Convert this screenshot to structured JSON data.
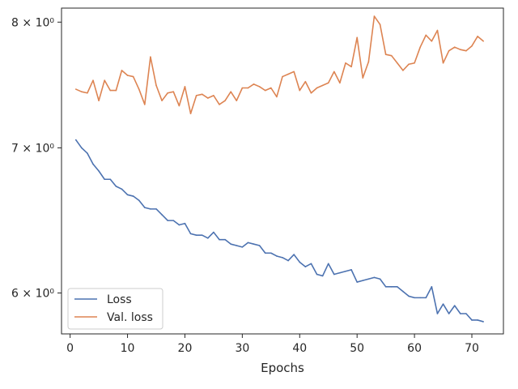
{
  "chart_data": {
    "type": "line",
    "title": "",
    "xlabel": "Epochs",
    "ylabel": "",
    "yscale": "log",
    "xlim": [
      -1.5,
      75.5
    ],
    "ylim": [
      5.745,
      8.12
    ],
    "x_ticks": [
      0,
      10,
      20,
      30,
      40,
      50,
      60,
      70
    ],
    "y_ticks": [
      {
        "value": 6,
        "label": "6 × 10⁰"
      },
      {
        "value": 7,
        "label": "7 × 10⁰"
      },
      {
        "value": 8,
        "label": "8 × 10⁰"
      }
    ],
    "grid": false,
    "legend_position": "lower-left",
    "series": [
      {
        "name": "Loss",
        "color": "#4c72b0",
        "x": [
          1,
          2,
          3,
          4,
          5,
          6,
          7,
          8,
          9,
          10,
          11,
          12,
          13,
          14,
          15,
          16,
          17,
          18,
          19,
          20,
          21,
          22,
          23,
          24,
          25,
          26,
          27,
          28,
          29,
          30,
          31,
          32,
          33,
          34,
          35,
          36,
          37,
          38,
          39,
          40,
          41,
          42,
          43,
          44,
          45,
          46,
          47,
          48,
          49,
          50,
          51,
          52,
          53,
          54,
          55,
          56,
          57,
          58,
          59,
          60,
          61,
          62,
          63,
          64,
          65,
          66,
          67,
          68,
          69,
          70,
          71,
          72
        ],
        "values": [
          7.06,
          7.0,
          6.96,
          6.88,
          6.83,
          6.77,
          6.77,
          6.72,
          6.7,
          6.66,
          6.65,
          6.62,
          6.57,
          6.56,
          6.56,
          6.52,
          6.48,
          6.48,
          6.45,
          6.46,
          6.39,
          6.38,
          6.38,
          6.36,
          6.4,
          6.35,
          6.35,
          6.32,
          6.31,
          6.3,
          6.33,
          6.32,
          6.31,
          6.26,
          6.26,
          6.24,
          6.23,
          6.21,
          6.25,
          6.2,
          6.17,
          6.19,
          6.12,
          6.11,
          6.19,
          6.12,
          6.13,
          6.14,
          6.15,
          6.07,
          6.08,
          6.09,
          6.1,
          6.09,
          6.04,
          6.04,
          6.04,
          6.01,
          5.98,
          5.97,
          5.97,
          5.97,
          6.04,
          5.87,
          5.93,
          5.87,
          5.92,
          5.87,
          5.87,
          5.83,
          5.83,
          5.82
        ]
      },
      {
        "name": "Val. loss",
        "color": "#dd8452",
        "x": [
          1,
          2,
          3,
          4,
          5,
          6,
          7,
          8,
          9,
          10,
          11,
          12,
          13,
          14,
          15,
          16,
          17,
          18,
          19,
          20,
          21,
          22,
          23,
          24,
          25,
          26,
          27,
          28,
          29,
          30,
          31,
          32,
          33,
          34,
          35,
          36,
          37,
          38,
          39,
          40,
          41,
          42,
          43,
          44,
          45,
          46,
          47,
          48,
          49,
          50,
          51,
          52,
          53,
          54,
          55,
          56,
          57,
          58,
          59,
          60,
          61,
          62,
          63,
          64,
          65,
          66,
          67,
          68,
          69,
          70,
          71,
          72
        ],
        "values": [
          7.45,
          7.43,
          7.42,
          7.52,
          7.36,
          7.52,
          7.44,
          7.44,
          7.6,
          7.56,
          7.55,
          7.45,
          7.33,
          7.71,
          7.48,
          7.36,
          7.42,
          7.43,
          7.32,
          7.47,
          7.26,
          7.4,
          7.41,
          7.38,
          7.4,
          7.33,
          7.36,
          7.43,
          7.36,
          7.46,
          7.46,
          7.49,
          7.47,
          7.44,
          7.46,
          7.39,
          7.55,
          7.57,
          7.59,
          7.44,
          7.51,
          7.42,
          7.46,
          7.48,
          7.5,
          7.59,
          7.5,
          7.66,
          7.63,
          7.87,
          7.54,
          7.67,
          8.05,
          7.98,
          7.73,
          7.72,
          7.66,
          7.6,
          7.65,
          7.66,
          7.79,
          7.89,
          7.84,
          7.93,
          7.66,
          7.76,
          7.79,
          7.77,
          7.76,
          7.8,
          7.88,
          7.84
        ]
      }
    ]
  }
}
